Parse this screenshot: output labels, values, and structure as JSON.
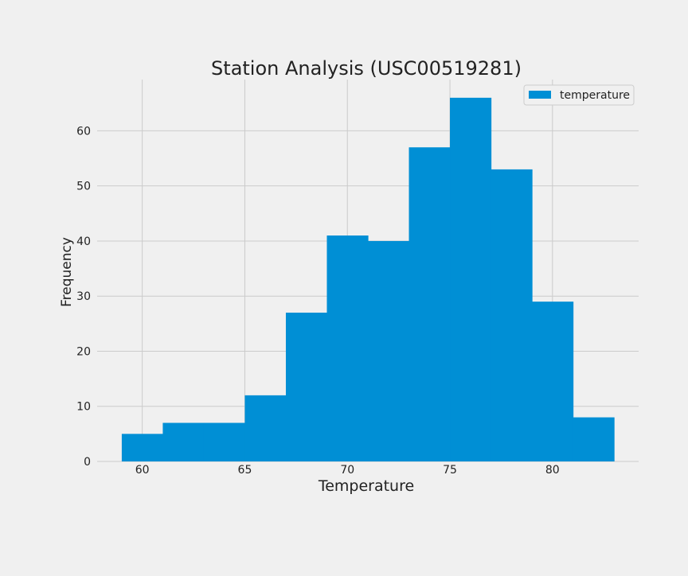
{
  "chart_data": {
    "type": "bar",
    "title": "Station Analysis (USC00519281)",
    "xlabel": "Temperature",
    "ylabel": "Frequency",
    "series": [
      {
        "name": "temperature",
        "bins": [
          {
            "x0": 59,
            "x1": 61,
            "count": 5
          },
          {
            "x0": 61,
            "x1": 63,
            "count": 7
          },
          {
            "x0": 63,
            "x1": 65,
            "count": 7
          },
          {
            "x0": 65,
            "x1": 67,
            "count": 12
          },
          {
            "x0": 67,
            "x1": 69,
            "count": 27
          },
          {
            "x0": 69,
            "x1": 71,
            "count": 41
          },
          {
            "x0": 71,
            "x1": 73,
            "count": 40
          },
          {
            "x0": 73,
            "x1": 75,
            "count": 57
          },
          {
            "x0": 75,
            "x1": 77,
            "count": 66
          },
          {
            "x0": 77,
            "x1": 79,
            "count": 53
          },
          {
            "x0": 79,
            "x1": 81,
            "count": 29
          },
          {
            "x0": 81,
            "x1": 83,
            "count": 8
          }
        ]
      }
    ],
    "xlim": [
      57.8,
      84.2
    ],
    "ylim": [
      0,
      69.3
    ],
    "xticks": [
      60,
      65,
      70,
      75,
      80
    ],
    "yticks": [
      0,
      10,
      20,
      30,
      40,
      50,
      60
    ],
    "grid": true,
    "legend_position": "top-right",
    "colors": {
      "bar": "#008fd5",
      "background": "#f0f0f0",
      "grid": "#cbcbcb",
      "text": "#222222"
    }
  }
}
